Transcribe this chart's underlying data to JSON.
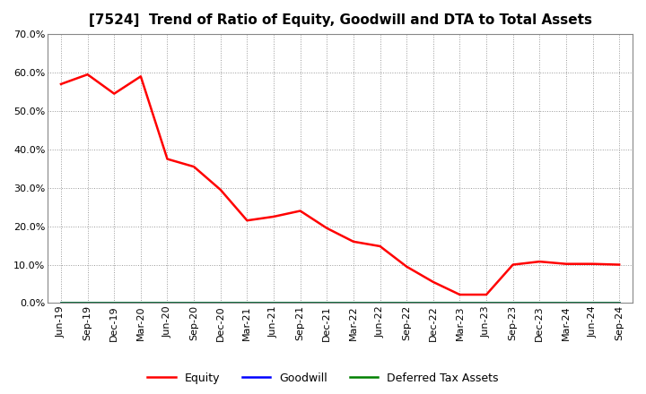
{
  "title": "[7524]  Trend of Ratio of Equity, Goodwill and DTA to Total Assets",
  "x_labels": [
    "Jun-19",
    "Sep-19",
    "Dec-19",
    "Mar-20",
    "Jun-20",
    "Sep-20",
    "Dec-20",
    "Mar-21",
    "Jun-21",
    "Sep-21",
    "Dec-21",
    "Mar-22",
    "Jun-22",
    "Sep-22",
    "Dec-22",
    "Mar-23",
    "Jun-23",
    "Sep-23",
    "Dec-23",
    "Mar-24",
    "Jun-24",
    "Sep-24"
  ],
  "equity": [
    0.57,
    0.595,
    0.545,
    0.59,
    0.375,
    0.355,
    0.295,
    0.215,
    0.225,
    0.24,
    0.195,
    0.16,
    0.148,
    0.095,
    0.055,
    0.022,
    0.022,
    0.1,
    0.108,
    0.102,
    0.102,
    0.1
  ],
  "goodwill": [
    0,
    0,
    0,
    0,
    0,
    0,
    0,
    0,
    0,
    0,
    0,
    0,
    0,
    0,
    0,
    0,
    0,
    0,
    0,
    0,
    0,
    0
  ],
  "dta": [
    0,
    0,
    0,
    0,
    0,
    0,
    0,
    0,
    0,
    0,
    0,
    0,
    0,
    0,
    0,
    0,
    0,
    0,
    0,
    0,
    0,
    0
  ],
  "equity_color": "#FF0000",
  "goodwill_color": "#0000FF",
  "dta_color": "#008000",
  "background_color": "#FFFFFF",
  "grid_color": "#999999",
  "ylim": [
    0.0,
    0.7
  ],
  "yticks": [
    0.0,
    0.1,
    0.2,
    0.3,
    0.4,
    0.5,
    0.6,
    0.7
  ],
  "legend_labels": [
    "Equity",
    "Goodwill",
    "Deferred Tax Assets"
  ],
  "title_fontsize": 11,
  "axis_fontsize": 8,
  "legend_fontsize": 9
}
